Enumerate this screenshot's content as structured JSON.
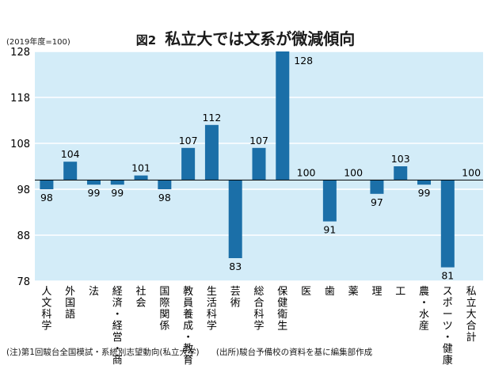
{
  "figure_label": "図2",
  "title": "私立大では文系が微減傾向",
  "unit_note": "(2019年度=100)",
  "footnote_note": "(注)第1回駿台全国模試・系統別志望動向(私立大学)",
  "footnote_source": "(出所)駿台予備校の資料を基に編集部作成",
  "colors": {
    "bar": "#1b6fa8",
    "plot_bg": "#d3ecf8",
    "grid": "#ffffff",
    "baseline": "#000000"
  },
  "chart_data": {
    "type": "bar",
    "baseline": 100,
    "ylim": [
      78,
      128
    ],
    "yticks": [
      78,
      88,
      98,
      108,
      118,
      128
    ],
    "grid": true,
    "categories": [
      "人文科学",
      "外国語",
      "法",
      "経済・経営・商",
      "社会",
      "国際関係",
      "教員養成・教育",
      "生活科学",
      "芸術",
      "総合科学",
      "保健衛生",
      "医",
      "歯",
      "薬",
      "理",
      "工",
      "農・水産",
      "スポーツ・健康",
      "私立大合計"
    ],
    "values": [
      98,
      104,
      99,
      99,
      101,
      98,
      107,
      112,
      83,
      107,
      128,
      100,
      91,
      100,
      97,
      103,
      99,
      81,
      100
    ]
  }
}
